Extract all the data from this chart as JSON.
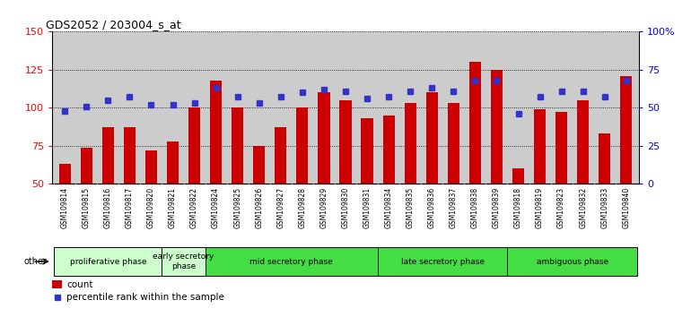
{
  "title": "GDS2052 / 203004_s_at",
  "samples": [
    "GSM109814",
    "GSM109815",
    "GSM109816",
    "GSM109817",
    "GSM109820",
    "GSM109821",
    "GSM109822",
    "GSM109824",
    "GSM109825",
    "GSM109826",
    "GSM109827",
    "GSM109828",
    "GSM109829",
    "GSM109830",
    "GSM109831",
    "GSM109834",
    "GSM109835",
    "GSM109836",
    "GSM109837",
    "GSM109838",
    "GSM109839",
    "GSM109818",
    "GSM109819",
    "GSM109823",
    "GSM109832",
    "GSM109833",
    "GSM109840"
  ],
  "counts": [
    63,
    74,
    87,
    87,
    72,
    78,
    100,
    118,
    100,
    75,
    87,
    100,
    110,
    105,
    93,
    95,
    103,
    110,
    103,
    130,
    125,
    60,
    99,
    97,
    105,
    83,
    121
  ],
  "percentiles": [
    48,
    51,
    55,
    57,
    52,
    52,
    53,
    63,
    57,
    53,
    57,
    60,
    62,
    61,
    56,
    57,
    61,
    63,
    61,
    68,
    68,
    46,
    57,
    61,
    61,
    57,
    68
  ],
  "ylim_left": [
    50,
    150
  ],
  "ylim_right": [
    0,
    100
  ],
  "yticks_left": [
    50,
    75,
    100,
    125,
    150
  ],
  "yticks_right": [
    0,
    25,
    50,
    75,
    100
  ],
  "bar_color": "#cc0000",
  "dot_color": "#3333cc",
  "groups": [
    {
      "label": "proliferative phase",
      "start": 0,
      "end": 5,
      "color": "#ccffcc"
    },
    {
      "label": "early secretory\nphase",
      "start": 5,
      "end": 7,
      "color": "#ccffcc"
    },
    {
      "label": "mid secretory phase",
      "start": 7,
      "end": 15,
      "color": "#44dd44"
    },
    {
      "label": "late secretory phase",
      "start": 15,
      "end": 21,
      "color": "#44dd44"
    },
    {
      "label": "ambiguous phase",
      "start": 21,
      "end": 27,
      "color": "#44dd44"
    }
  ],
  "other_label": "other",
  "legend_count": "count",
  "legend_pct": "percentile rank within the sample",
  "plot_bg": "#cccccc",
  "tick_bg": "#cccccc"
}
